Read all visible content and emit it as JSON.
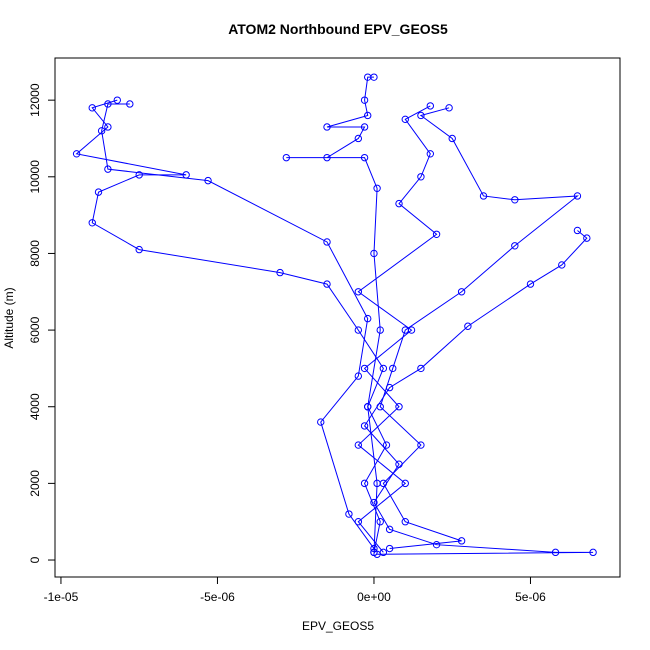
{
  "chart_data": {
    "type": "line",
    "title": "ATOM2 Northbound EPV_GEOS5",
    "x_label": "EPV_GEOS5",
    "y_label": "Altitude (m)",
    "color": "#0000ff",
    "xlim": [
      -1.019e-05,
      7.86e-06
    ],
    "ylim": [
      -443,
      13100
    ],
    "xticks": [
      {
        "value": -1e-05,
        "label": "-1e-05"
      },
      {
        "value": -5e-06,
        "label": "-5e-06"
      },
      {
        "value": 0,
        "label": "0e+00"
      },
      {
        "value": 5e-06,
        "label": "5e-06"
      }
    ],
    "yticks": [
      0,
      2000,
      4000,
      6000,
      8000,
      10000,
      12000
    ],
    "series": [
      {
        "x": [
          0,
          2e-07,
          -3e-07,
          4e-07,
          -2e-07,
          3e-07,
          -5e-07,
          -1.5e-06,
          -3e-06,
          -7.5e-06,
          -9e-06,
          -8.8e-06,
          -7.5e-06,
          -6e-06,
          -9.5e-06,
          -8.5e-06,
          -9e-06,
          -8.2e-06
        ],
        "values": [
          200,
          1000,
          2000,
          3000,
          4000,
          5000,
          6000,
          7200,
          7500,
          8100,
          8800,
          9600,
          10050,
          10050,
          10600,
          11300,
          11800,
          12000
        ]
      },
      {
        "x": [
          1e-07,
          7e-06,
          5.8e-06,
          2e-06,
          5e-07,
          0,
          8e-07,
          -3e-07,
          5e-07,
          1.5e-06,
          3e-06,
          5e-06,
          6e-06,
          6.8e-06,
          6.5e-06
        ],
        "values": [
          150,
          200,
          200,
          400,
          800,
          1500,
          2500,
          3500,
          4500,
          5000,
          6100,
          7200,
          7700,
          8400,
          8600
        ]
      },
      {
        "x": [
          0,
          -8e-07,
          -1.7e-06,
          -5e-07,
          -2e-07,
          -1.5e-06,
          -5.3e-06,
          -8.5e-06,
          -8.7e-06,
          -8.5e-06,
          -7.8e-06
        ],
        "values": [
          300,
          1200,
          3600,
          4800,
          6300,
          8300,
          9900,
          10200,
          11200,
          11900,
          11900
        ]
      },
      {
        "x": [
          5e-07,
          2.8e-06,
          1e-06,
          3e-07,
          1.5e-06,
          2e-07,
          6e-07,
          1e-06,
          2.8e-06,
          4.5e-06,
          6.5e-06,
          4.5e-06,
          3.5e-06,
          2.5e-06,
          1.5e-06,
          2.4e-06
        ],
        "values": [
          300,
          500,
          1000,
          2000,
          3000,
          4000,
          5000,
          6000,
          7000,
          8200,
          9500,
          9400,
          9500,
          11000,
          11600,
          11800
        ]
      },
      {
        "x": [
          0,
          1e-07,
          -2e-07,
          2e-07,
          0,
          1e-07,
          -3e-07,
          -2.8e-06,
          -1.5e-06,
          -5e-07,
          -3e-07,
          -1.5e-06,
          -2e-07,
          -3e-07,
          -2e-07,
          0
        ],
        "values": [
          200,
          2000,
          4000,
          6000,
          8000,
          9700,
          10500,
          10500,
          10500,
          11000,
          11300,
          11300,
          11600,
          12000,
          12600,
          12600
        ]
      },
      {
        "x": [
          3e-07,
          -5e-07,
          1e-06,
          -5e-07,
          8e-07,
          -3e-07,
          1.2e-06,
          -5e-07,
          2e-06,
          8e-07,
          1.5e-06,
          1.8e-06,
          1e-06,
          1.8e-06
        ],
        "values": [
          200,
          1000,
          2000,
          3000,
          4000,
          5000,
          6000,
          7000,
          8500,
          9300,
          10000,
          10600,
          11500,
          11850
        ]
      }
    ]
  }
}
